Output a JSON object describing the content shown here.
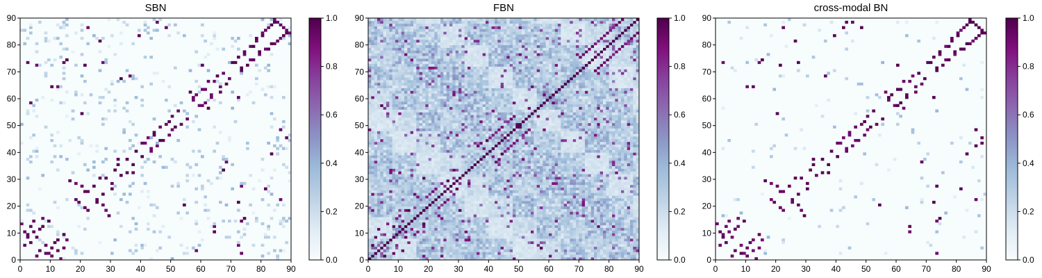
{
  "colormap": {
    "name": "BuPu",
    "stops": [
      "#f7fcfd",
      "#e0ecf4",
      "#bfd3e6",
      "#9ebcda",
      "#8c96c6",
      "#8c6bb1",
      "#88419d",
      "#810f7c",
      "#4d004b"
    ]
  },
  "chart_data": [
    {
      "type": "heatmap",
      "title": "SBN",
      "xlim": [
        0,
        90
      ],
      "ylim": [
        0,
        90
      ],
      "xticks": [
        0,
        10,
        20,
        30,
        40,
        50,
        60,
        70,
        80,
        90
      ],
      "yticks": [
        0,
        10,
        20,
        30,
        40,
        50,
        60,
        70,
        80,
        90
      ],
      "colorbar": {
        "range": [
          0.0,
          1.0
        ],
        "ticks": [
          "0.0",
          "0.2",
          "0.4",
          "0.6",
          "0.8",
          "1.0"
        ]
      },
      "n": 90,
      "pattern": "sparse symmetric matrix with strong entries along the diagonal band and scattered off-diagonal clusters",
      "strong_cells": [
        [
          1,
          10
        ],
        [
          2,
          8
        ],
        [
          3,
          12
        ],
        [
          4,
          14
        ],
        [
          5,
          1
        ],
        [
          6,
          3
        ],
        [
          7,
          15
        ],
        [
          8,
          5
        ],
        [
          9,
          2
        ],
        [
          10,
          4
        ],
        [
          11,
          6
        ],
        [
          12,
          7
        ],
        [
          13,
          0
        ],
        [
          14,
          9
        ],
        [
          16,
          29
        ],
        [
          18,
          28
        ],
        [
          19,
          21
        ],
        [
          21,
          25
        ],
        [
          22,
          18
        ],
        [
          24,
          27
        ],
        [
          25,
          22
        ],
        [
          27,
          20
        ],
        [
          28,
          30
        ],
        [
          30,
          26
        ],
        [
          31,
          33
        ],
        [
          32,
          35
        ],
        [
          33,
          31
        ],
        [
          35,
          37
        ],
        [
          37,
          32
        ],
        [
          38,
          40
        ],
        [
          40,
          43
        ],
        [
          42,
          45
        ],
        [
          43,
          41
        ],
        [
          44,
          46
        ],
        [
          45,
          42
        ],
        [
          46,
          49
        ],
        [
          47,
          44
        ],
        [
          49,
          51
        ],
        [
          50,
          48
        ],
        [
          52,
          55
        ],
        [
          53,
          50
        ],
        [
          55,
          52
        ],
        [
          56,
          62
        ],
        [
          57,
          60
        ],
        [
          59,
          57
        ],
        [
          60,
          63
        ],
        [
          61,
          58
        ],
        [
          62,
          66
        ],
        [
          63,
          61
        ],
        [
          65,
          68
        ],
        [
          66,
          64
        ],
        [
          67,
          69
        ],
        [
          68,
          65
        ],
        [
          70,
          73
        ],
        [
          72,
          75
        ],
        [
          73,
          71
        ],
        [
          74,
          77
        ],
        [
          75,
          72
        ],
        [
          76,
          74
        ],
        [
          77,
          79
        ],
        [
          78,
          82
        ],
        [
          79,
          76
        ],
        [
          80,
          84
        ],
        [
          81,
          78
        ],
        [
          82,
          86
        ],
        [
          83,
          80
        ],
        [
          84,
          88
        ],
        [
          85,
          81
        ],
        [
          86,
          87
        ],
        [
          87,
          83
        ],
        [
          88,
          85
        ],
        [
          89,
          84
        ],
        [
          14,
          73
        ],
        [
          15,
          74
        ],
        [
          2,
          73
        ],
        [
          10,
          64
        ],
        [
          12,
          64
        ],
        [
          22,
          86
        ],
        [
          27,
          73
        ],
        [
          33,
          67
        ],
        [
          36,
          68
        ],
        [
          60,
          72
        ],
        [
          5,
          72
        ],
        [
          3,
          58
        ],
        [
          21,
          72
        ],
        [
          26,
          81
        ],
        [
          45,
          88
        ],
        [
          48,
          86
        ],
        [
          39,
          83
        ],
        [
          20,
          54
        ]
      ],
      "weak_density": 0.06
    },
    {
      "type": "heatmap",
      "title": "FBN",
      "xlim": [
        0,
        90
      ],
      "ylim": [
        0,
        90
      ],
      "xticks": [
        0,
        10,
        20,
        30,
        40,
        50,
        60,
        70,
        80,
        90
      ],
      "yticks": [
        0,
        10,
        20,
        30,
        40,
        50,
        60,
        70,
        80,
        90
      ],
      "colorbar": {
        "range": [
          0.0,
          1.0
        ],
        "ticks": [
          "0.0",
          "0.2",
          "0.4",
          "0.6",
          "0.8",
          "1.0"
        ]
      },
      "n": 90,
      "pattern": "dense symmetric matrix with diagonal equal to 1 and block-structured mid-range correlations",
      "strong_cells": [
        [
          1,
          5
        ],
        [
          2,
          8
        ],
        [
          3,
          11
        ],
        [
          5,
          9
        ],
        [
          6,
          13
        ],
        [
          8,
          12
        ],
        [
          9,
          15
        ],
        [
          10,
          16
        ],
        [
          11,
          14
        ],
        [
          13,
          18
        ],
        [
          19,
          23
        ],
        [
          21,
          25
        ],
        [
          22,
          26
        ],
        [
          24,
          28
        ],
        [
          25,
          27
        ],
        [
          26,
          29
        ],
        [
          36,
          42
        ],
        [
          37,
          43
        ],
        [
          38,
          41
        ],
        [
          39,
          44
        ],
        [
          40,
          45
        ],
        [
          41,
          46
        ],
        [
          42,
          47
        ],
        [
          43,
          48
        ],
        [
          44,
          49
        ],
        [
          46,
          51
        ],
        [
          47,
          52
        ],
        [
          48,
          53
        ],
        [
          49,
          50
        ],
        [
          70,
          75
        ],
        [
          71,
          76
        ],
        [
          72,
          77
        ],
        [
          73,
          78
        ],
        [
          74,
          79
        ],
        [
          75,
          80
        ],
        [
          76,
          81
        ],
        [
          77,
          82
        ],
        [
          78,
          83
        ],
        [
          79,
          84
        ],
        [
          80,
          85
        ],
        [
          81,
          86
        ],
        [
          82,
          87
        ],
        [
          83,
          88
        ],
        [
          84,
          89
        ],
        [
          4,
          57
        ],
        [
          5,
          56
        ],
        [
          10,
          54
        ],
        [
          14,
          62
        ],
        [
          7,
          33
        ],
        [
          16,
          23
        ],
        [
          18,
          30
        ],
        [
          28,
          33
        ],
        [
          54,
          64
        ],
        [
          56,
          70
        ],
        [
          58,
          61
        ]
      ],
      "weak_density": 0.9
    },
    {
      "type": "heatmap",
      "title": "cross-modal BN",
      "xlim": [
        0,
        90
      ],
      "ylim": [
        0,
        90
      ],
      "xticks": [
        0,
        10,
        20,
        30,
        40,
        50,
        60,
        70,
        80,
        90
      ],
      "yticks": [
        0,
        10,
        20,
        30,
        40,
        50,
        60,
        70,
        80,
        90
      ],
      "colorbar": {
        "range": [
          0.0,
          1.0
        ],
        "ticks": [
          "0.0",
          "0.2",
          "0.4",
          "0.6",
          "0.8",
          "1.0"
        ]
      },
      "n": 90,
      "pattern": "sparse symmetric binary-like matrix with strong entries along the diagonal band and scattered off-diagonal clusters",
      "strong_cells": [
        [
          1,
          10
        ],
        [
          2,
          8
        ],
        [
          3,
          12
        ],
        [
          4,
          14
        ],
        [
          5,
          1
        ],
        [
          6,
          3
        ],
        [
          7,
          15
        ],
        [
          8,
          5
        ],
        [
          9,
          2
        ],
        [
          10,
          4
        ],
        [
          11,
          6
        ],
        [
          12,
          7
        ],
        [
          13,
          0
        ],
        [
          14,
          9
        ],
        [
          16,
          29
        ],
        [
          18,
          28
        ],
        [
          19,
          21
        ],
        [
          21,
          25
        ],
        [
          22,
          18
        ],
        [
          24,
          27
        ],
        [
          25,
          22
        ],
        [
          27,
          20
        ],
        [
          28,
          30
        ],
        [
          30,
          26
        ],
        [
          31,
          33
        ],
        [
          32,
          35
        ],
        [
          33,
          31
        ],
        [
          35,
          37
        ],
        [
          37,
          32
        ],
        [
          38,
          40
        ],
        [
          40,
          43
        ],
        [
          42,
          45
        ],
        [
          43,
          41
        ],
        [
          44,
          46
        ],
        [
          45,
          42
        ],
        [
          46,
          49
        ],
        [
          47,
          44
        ],
        [
          49,
          51
        ],
        [
          50,
          48
        ],
        [
          52,
          55
        ],
        [
          53,
          50
        ],
        [
          55,
          52
        ],
        [
          56,
          62
        ],
        [
          57,
          60
        ],
        [
          59,
          57
        ],
        [
          60,
          63
        ],
        [
          61,
          58
        ],
        [
          62,
          66
        ],
        [
          63,
          61
        ],
        [
          65,
          68
        ],
        [
          66,
          64
        ],
        [
          67,
          69
        ],
        [
          68,
          65
        ],
        [
          70,
          73
        ],
        [
          72,
          75
        ],
        [
          73,
          71
        ],
        [
          74,
          77
        ],
        [
          75,
          72
        ],
        [
          76,
          74
        ],
        [
          77,
          79
        ],
        [
          78,
          82
        ],
        [
          79,
          76
        ],
        [
          80,
          84
        ],
        [
          81,
          78
        ],
        [
          82,
          86
        ],
        [
          83,
          80
        ],
        [
          84,
          88
        ],
        [
          85,
          81
        ],
        [
          86,
          87
        ],
        [
          87,
          83
        ],
        [
          88,
          85
        ],
        [
          89,
          84
        ],
        [
          14,
          73
        ],
        [
          15,
          74
        ],
        [
          2,
          73
        ],
        [
          10,
          64
        ],
        [
          12,
          64
        ],
        [
          22,
          86
        ],
        [
          27,
          73
        ],
        [
          36,
          68
        ],
        [
          60,
          72
        ],
        [
          21,
          72
        ],
        [
          26,
          81
        ],
        [
          45,
          88
        ],
        [
          48,
          86
        ],
        [
          39,
          83
        ],
        [
          20,
          54
        ],
        [
          42,
          86
        ],
        [
          43,
          88
        ]
      ],
      "weak_density": 0.015
    }
  ]
}
